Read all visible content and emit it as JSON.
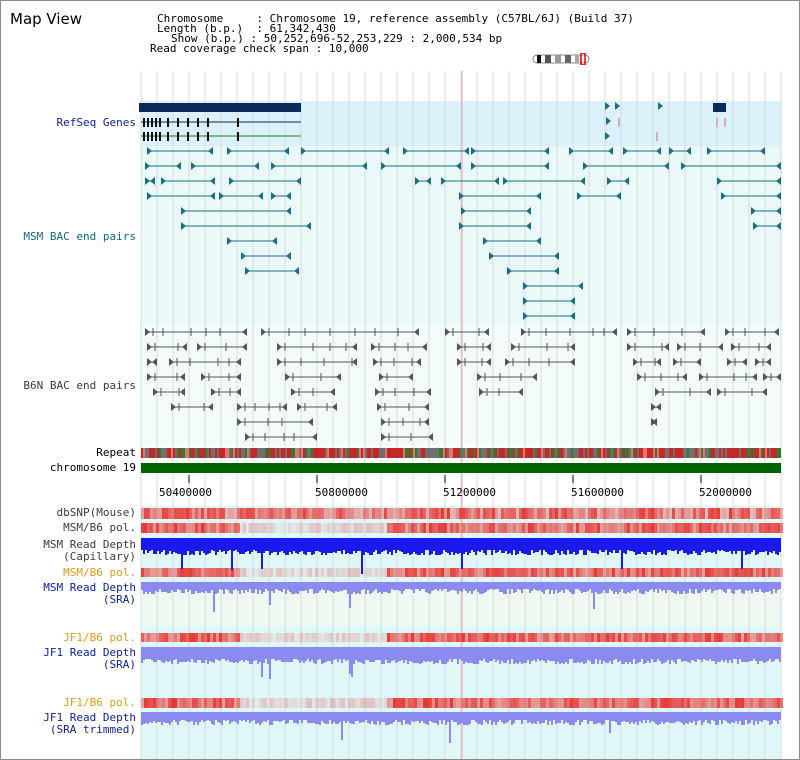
{
  "title": "Map View",
  "info": {
    "chromosome_label": "Chromosome",
    "chromosome_value": "Chromosome 19, reference assembly (C57BL/6J) (Build 37)",
    "length_label": "Length (b.p.)",
    "length_value": "61,342,430",
    "show_label": "Show (b.p.)",
    "show_value": "50,252,696-52,253,229 : 2,000,534 bp",
    "coverage_label": "Read coverage check span",
    "coverage_value": "10,000"
  },
  "tracks": {
    "refseq": "RefSeq Genes",
    "msm_bac": "MSM BAC end pairs",
    "b6n_bac": "B6N BAC end pairs",
    "repeat": "Repeat",
    "chromosome": "chromosome 19",
    "dbsnp": "dbSNP(Mouse)",
    "msm_b6_pol": "MSM/B6 pol.",
    "msm_read_depth_cap_1": "MSM Read Depth",
    "msm_read_depth_cap_2": "(Capillary)",
    "msm_b6_pol_2": "MSM/B6 pol.",
    "msm_read_depth_sra_1": "MSM Read Depth",
    "msm_read_depth_sra_2": "(SRA)",
    "jf1_b6_pol": "JF1/B6 pol.",
    "jf1_read_depth_sra_1": "JF1 Read Depth",
    "jf1_read_depth_sra_2": "(SRA)",
    "jf1_b6_pol_2": "JF1/B6 pol.",
    "jf1_read_depth_trim_1": "JF1 Read Depth",
    "jf1_read_depth_trim_2": "(SRA trimmed)"
  },
  "axis_ticks": [
    "50400000",
    "50800000",
    "51200000",
    "51600000",
    "52000000"
  ],
  "colors": {
    "refseq_bg": "#ddf1fb",
    "track_bg": "#eaf8f8",
    "gene_dark": "#0a2a5a",
    "msm_bac": "#1a6f85",
    "b6n_bac": "#555555",
    "chromosome_bar": "#006400",
    "snp_red": "#e53935",
    "depth_blue": "#1a1aee",
    "depth_light_blue": "#8a8af0",
    "jf1_bg": "#e0f7f7",
    "marker_red": "#cc0000"
  }
}
